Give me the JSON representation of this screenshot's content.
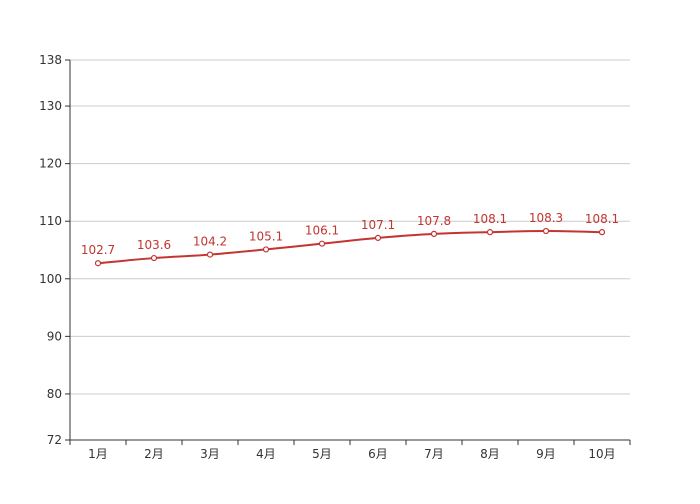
{
  "chart_data": {
    "type": "line",
    "categories": [
      "1月",
      "2月",
      "3月",
      "4月",
      "5月",
      "6月",
      "7月",
      "8月",
      "9月",
      "10月"
    ],
    "series": [
      {
        "values": [
          102.7,
          103.6,
          104.2,
          105.1,
          106.1,
          107.1,
          107.8,
          108.1,
          108.3,
          108.1
        ],
        "value_labels": [
          "102.7",
          "103.6",
          "104.2",
          "105.1",
          "106.1",
          "107.1",
          "107.8",
          "108.1",
          "108.3",
          "108.1"
        ],
        "color": "#c23531"
      }
    ],
    "y_ticks": [
      72,
      80,
      90,
      100,
      110,
      120,
      130,
      138
    ],
    "ylim": [
      72,
      138
    ],
    "grid": true,
    "legend": "none",
    "colors": {
      "line": "#c23531",
      "axis": "#333333",
      "grid": "#cccccc",
      "label": "#c23531",
      "tick_text": "#333333",
      "marker_fill": "#ffffff"
    }
  }
}
